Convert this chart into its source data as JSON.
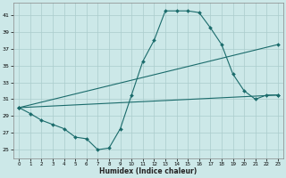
{
  "title": "",
  "xlabel": "Humidex (Indice chaleur)",
  "bg_color": "#cce8e8",
  "grid_color": "#aacccc",
  "line_color": "#1a6b6b",
  "xlim": [
    -0.5,
    23.5
  ],
  "ylim": [
    24.0,
    42.5
  ],
  "yticks": [
    25,
    27,
    29,
    31,
    33,
    35,
    37,
    39,
    41
  ],
  "xticks": [
    0,
    1,
    2,
    3,
    4,
    5,
    6,
    7,
    8,
    9,
    10,
    11,
    12,
    13,
    14,
    15,
    16,
    17,
    18,
    19,
    20,
    21,
    22,
    23
  ],
  "line1_x": [
    0,
    1,
    2,
    3,
    4,
    5,
    6,
    7,
    8,
    9,
    10,
    11,
    12,
    13,
    14,
    15,
    16,
    17,
    18,
    19,
    20,
    21,
    22,
    23
  ],
  "line1_y": [
    30.0,
    29.3,
    28.5,
    28.0,
    27.5,
    26.5,
    26.3,
    25.0,
    25.2,
    27.5,
    31.5,
    35.5,
    38.0,
    41.5,
    41.5,
    41.5,
    41.3,
    39.5,
    37.5,
    34.0,
    32.0,
    31.0,
    31.5,
    31.5
  ],
  "line2_x": [
    0,
    23
  ],
  "line2_y": [
    30.0,
    37.5
  ],
  "line3_x": [
    0,
    23
  ],
  "line3_y": [
    30.0,
    31.5
  ],
  "markersize": 2.0,
  "linewidth": 0.8
}
